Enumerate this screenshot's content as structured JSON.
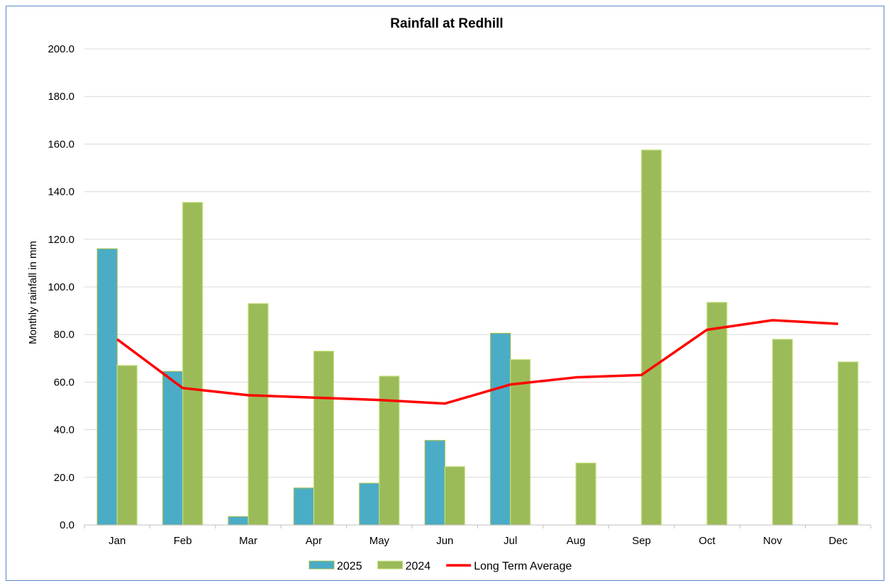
{
  "chart_data": {
    "type": "bar",
    "title": "Rainfall at Redhill",
    "xlabel": "",
    "ylabel": "Monthly rainfall in mm",
    "ylim": [
      0,
      200
    ],
    "ytick_step": 20,
    "ytick_labels": [
      "0.0",
      "20.0",
      "40.0",
      "60.0",
      "80.0",
      "100.0",
      "120.0",
      "140.0",
      "160.0",
      "180.0",
      "200.0"
    ],
    "categories": [
      "Jan",
      "Feb",
      "Mar",
      "Apr",
      "May",
      "Jun",
      "Jul",
      "Aug",
      "Sep",
      "Oct",
      "Nov",
      "Dec"
    ],
    "grid": true,
    "legend_position": "bottom",
    "series": [
      {
        "name": "2025",
        "kind": "bar",
        "color": "#4bacc6",
        "edge": "#9bbb59",
        "values": [
          116,
          64.5,
          3.5,
          15.5,
          17.5,
          35.5,
          80.5,
          null,
          null,
          null,
          null,
          null
        ]
      },
      {
        "name": "2024",
        "kind": "bar",
        "color": "#9bbb59",
        "edge": "#c5e07d",
        "values": [
          67,
          135.5,
          93,
          73,
          62.5,
          24.5,
          69.5,
          26,
          157.5,
          93.5,
          78,
          68.5
        ]
      },
      {
        "name": "Long Term Average",
        "kind": "line",
        "color": "#ff0000",
        "values": [
          78,
          57.5,
          54.5,
          53.5,
          52.5,
          51,
          59,
          62,
          63,
          82,
          86,
          84.5
        ]
      }
    ]
  }
}
